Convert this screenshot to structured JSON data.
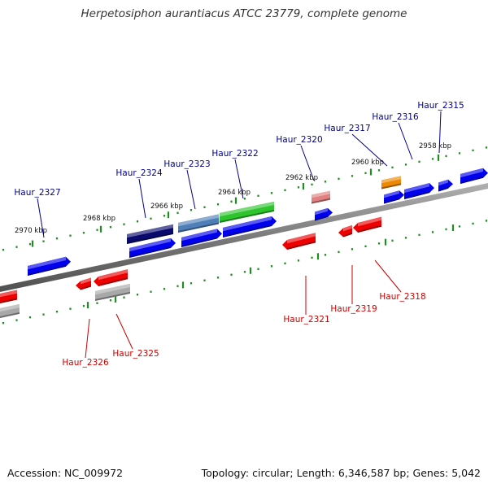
{
  "title": "Herpetosiphon aurantiacus ATCC 23779, complete genome",
  "footer": {
    "accession": "Accession: NC_009972",
    "summary": "Topology: circular; Length: 6,346,587 bp; Genes: 5,042"
  },
  "colors": {
    "top_label": "#00008b",
    "bottom_label": "#cc0000",
    "tick": "#228b22",
    "axis": "#808080"
  },
  "scale_labels": [
    "2970 kbp",
    "2968 kbp",
    "2966 kbp",
    "2964 kbp",
    "2962 kbp",
    "2960 kbp",
    "2958 kbp"
  ],
  "top_gene_labels": [
    "Haur_2327",
    "Haur_2324",
    "Haur_2323",
    "Haur_2322",
    "Haur_2320",
    "Haur_2317",
    "Haur_2316",
    "Haur_2315"
  ],
  "bottom_gene_labels": [
    "Haur_2326",
    "Haur_2325",
    "Haur_2321",
    "Haur_2319",
    "Haur_2318"
  ]
}
